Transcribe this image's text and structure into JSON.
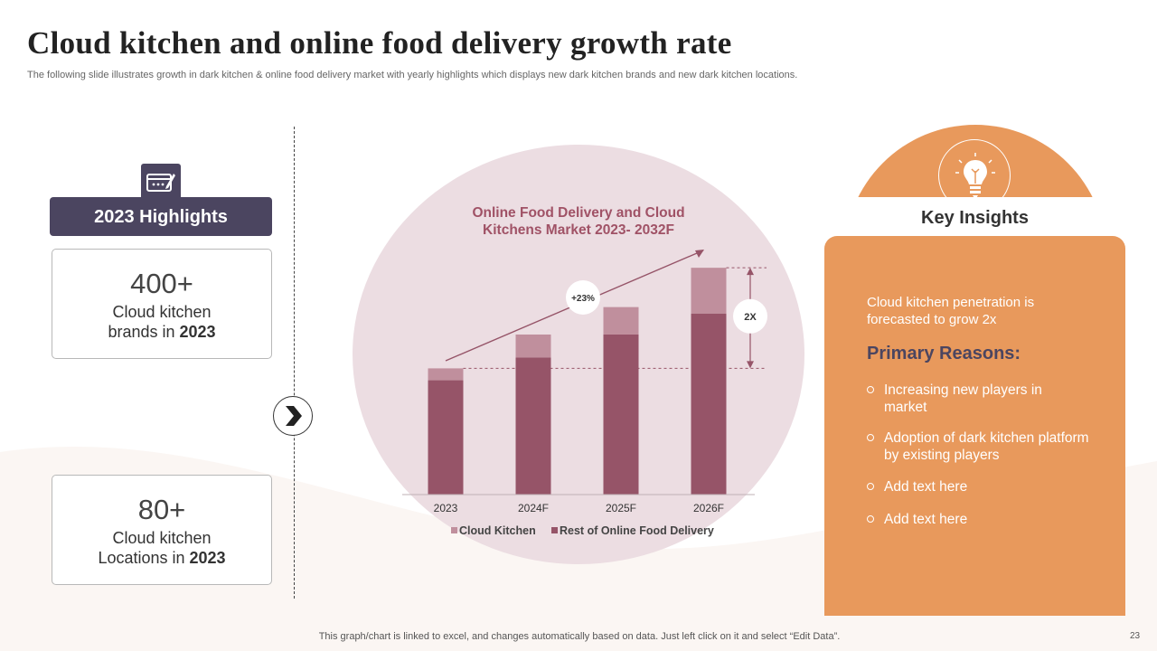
{
  "title": "Cloud kitchen and online food delivery growth rate",
  "subtitle": "The following slide illustrates growth in dark kitchen & online food delivery market with yearly highlights which displays new dark kitchen brands and new dark kitchen locations.",
  "highlights": {
    "banner": "2023 Highlights",
    "icon": "calendar-edit-icon",
    "cards": [
      {
        "value": "400+",
        "line1": "Cloud kitchen",
        "line2_prefix": "brands in ",
        "line2_year": "2023"
      },
      {
        "value": "80+",
        "line1": "Cloud kitchen",
        "line2_prefix": "Locations in ",
        "line2_year": "2023"
      }
    ]
  },
  "chart_data": {
    "type": "bar",
    "stacked": true,
    "title_line1": "Online Food Delivery and Cloud",
    "title_line2": "Kitchens Market 2023- 2032F",
    "categories": [
      "2023",
      "2024F",
      "2025F",
      "2026F"
    ],
    "series": [
      {
        "name": "Rest of Online Food Delivery",
        "color": "#965468",
        "values": [
          125,
          150,
          175,
          198
        ]
      },
      {
        "name": "Cloud Kitchen",
        "color": "#c08f9d",
        "values": [
          13,
          25,
          30,
          50
        ]
      }
    ],
    "legend": [
      "Cloud Kitchen",
      "Rest of Online Food Delivery"
    ],
    "ylim": [
      0,
      260
    ],
    "annotations": {
      "growth_label": "+23%",
      "multiplier_label": "2X"
    }
  },
  "key_insights": {
    "header": "Key Insights",
    "icon": "lightbulb-icon",
    "lead": "Cloud kitchen penetration is forecasted to grow 2x",
    "reasons_title": "Primary Reasons:",
    "items": [
      "Increasing new players in market",
      "Adoption of dark kitchen platform by existing players",
      "Add text here",
      "Add text here"
    ]
  },
  "footer": "This graph/chart is linked to excel,  and changes automatically based on data. Just left click on it and select “Edit Data”.",
  "page_number": "23",
  "colors": {
    "accent_orange": "#e8995c",
    "dark_purple": "#4b4560",
    "bar_dark": "#965468",
    "bar_light": "#c08f9d"
  }
}
